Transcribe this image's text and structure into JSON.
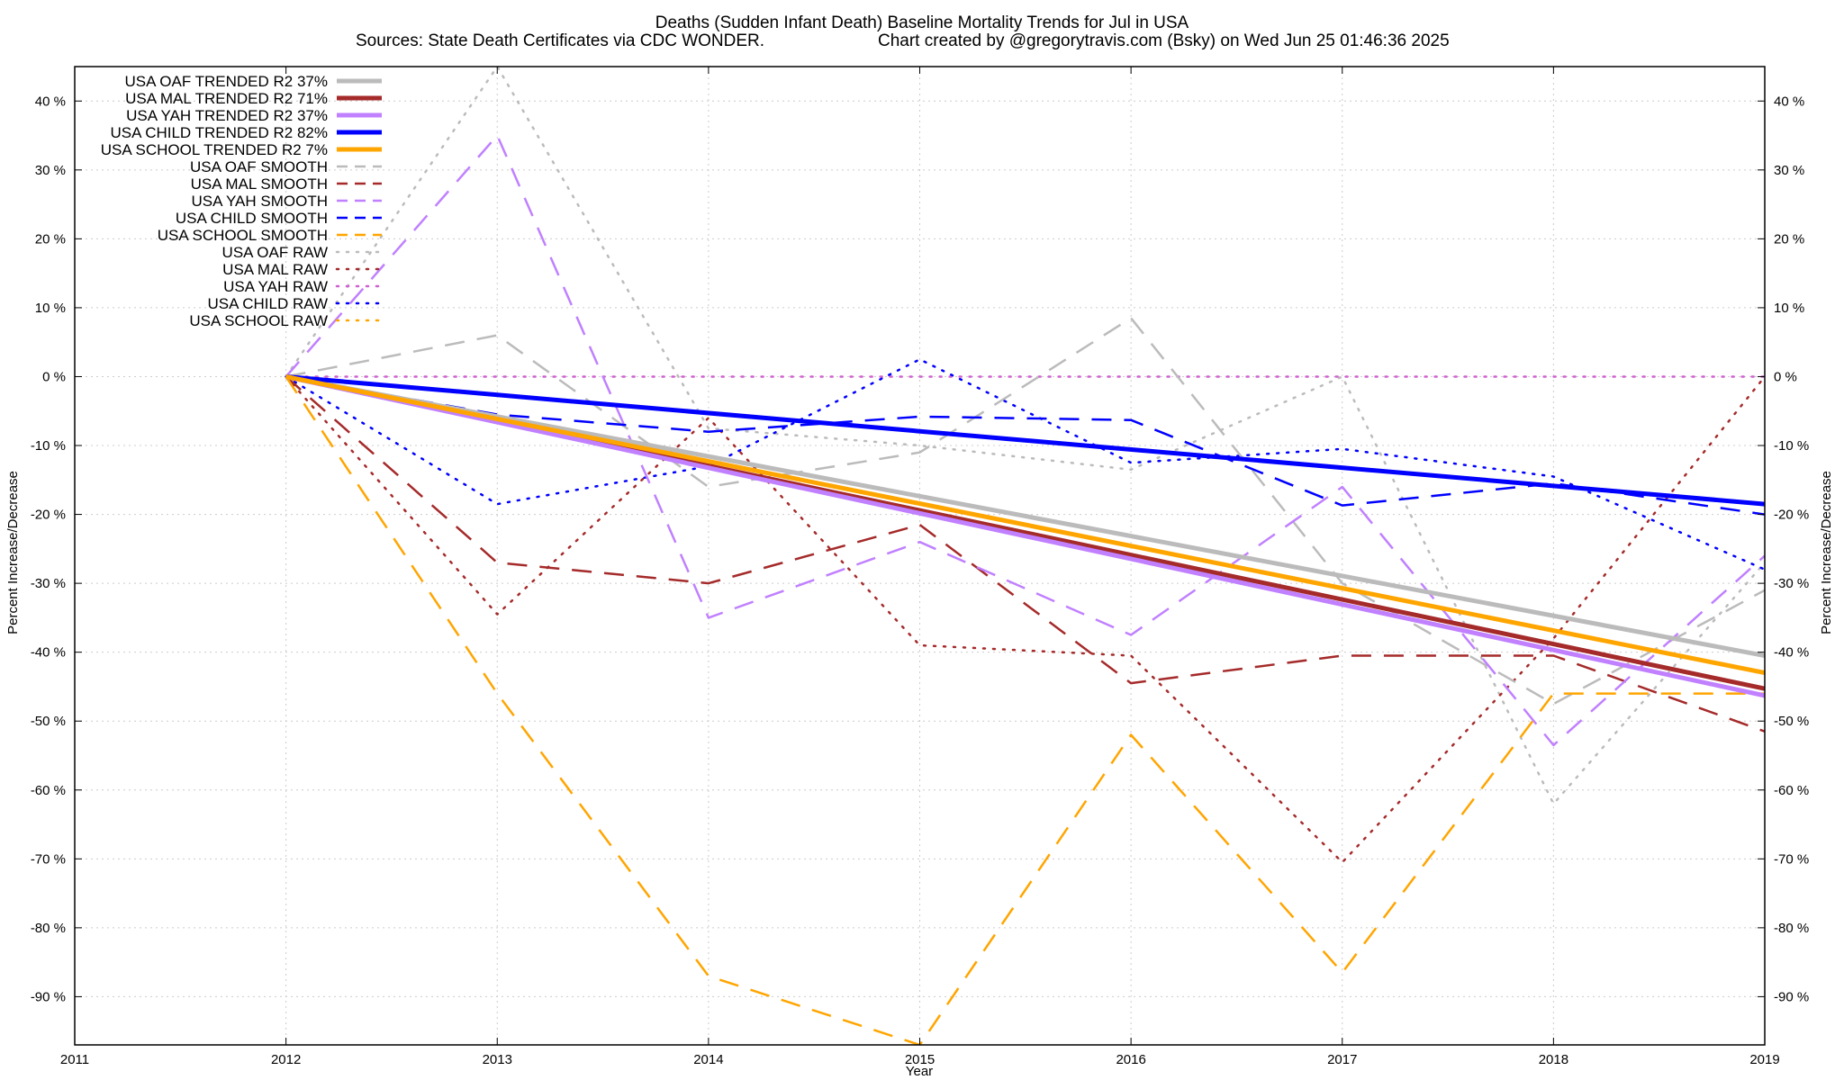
{
  "chart_data": {
    "type": "line",
    "title": "Deaths (Sudden Infant Death)  Baseline Mortality Trends for Jul in USA",
    "subtitle_left": "Sources: State Death Certificates via CDC WONDER.",
    "subtitle_right": "Chart created by @gregorytravis.com (Bsky) on Wed Jun 25 01:46:36 2025",
    "xlabel": "Year",
    "ylabel": "Percent Increase/Decrease",
    "y2label": "Percent Increase/Decrease",
    "xlim": [
      2011,
      2019
    ],
    "ylim": [
      -97,
      45
    ],
    "x_ticks": [
      "2011",
      "2012",
      "2013",
      "2014",
      "2015",
      "2016",
      "2017",
      "2018",
      "2019"
    ],
    "y_ticks": [
      "40 %",
      "30 %",
      "20 %",
      "10 %",
      "0 %",
      "-10 %",
      "-20 %",
      "-30 %",
      "-40 %",
      "-50 %",
      "-60 %",
      "-70 %",
      "-80 %",
      "-90 %"
    ],
    "y_tick_values": [
      40,
      30,
      20,
      10,
      0,
      -10,
      -20,
      -30,
      -40,
      -50,
      -60,
      -70,
      -80,
      -90
    ],
    "grid": true,
    "legend_position": "top-left",
    "series": [
      {
        "name": "USA OAF TRENDED R2  37%",
        "color": "#bbbbbb",
        "style": "solid",
        "width": 5,
        "x": [
          2012,
          2019
        ],
        "y": [
          0,
          -40.5
        ]
      },
      {
        "name": "USA MAL TRENDED R2  71%",
        "color": "#a52a2a",
        "style": "solid",
        "width": 5,
        "x": [
          2012,
          2019
        ],
        "y": [
          0,
          -45.3
        ]
      },
      {
        "name": "USA YAH TRENDED R2  37%",
        "color": "#c080ff",
        "style": "solid",
        "width": 5,
        "x": [
          2012,
          2019
        ],
        "y": [
          0,
          -46.3
        ]
      },
      {
        "name": "USA CHILD TRENDED R2  82%",
        "color": "#0000ff",
        "style": "solid",
        "width": 5,
        "x": [
          2012,
          2019
        ],
        "y": [
          0,
          -18.5
        ]
      },
      {
        "name": "USA SCHOOL TRENDED R2   7%",
        "color": "#ffa500",
        "style": "solid",
        "width": 5,
        "x": [
          2012,
          2019
        ],
        "y": [
          0,
          -43.0
        ]
      },
      {
        "name": "USA OAF SMOOTH",
        "color": "#bbbbbb",
        "style": "dashed",
        "width": 2.5,
        "x": [
          2012,
          2013,
          2014,
          2015,
          2016,
          2017,
          2018,
          2019
        ],
        "y": [
          0,
          6,
          -16,
          -11,
          8.5,
          -30,
          -47.5,
          -31
        ]
      },
      {
        "name": "USA MAL SMOOTH",
        "color": "#a52a2a",
        "style": "dashed",
        "width": 2.5,
        "x": [
          2012,
          2013,
          2014,
          2015,
          2016,
          2017,
          2018,
          2019
        ],
        "y": [
          0,
          -27,
          -30,
          -21.5,
          -44.5,
          -40.5,
          -40.5,
          -51.5
        ]
      },
      {
        "name": "USA YAH SMOOTH",
        "color": "#c080ff",
        "style": "dashed",
        "width": 2.5,
        "x": [
          2012,
          2013,
          2014,
          2015,
          2016,
          2017,
          2018,
          2019
        ],
        "y": [
          0,
          35,
          -35,
          -24,
          -37.5,
          -16,
          -53.5,
          -26
        ]
      },
      {
        "name": "USA CHILD SMOOTH",
        "color": "#0000ff",
        "style": "dashed",
        "width": 2.5,
        "x": [
          2012,
          2013,
          2014,
          2015,
          2016,
          2017,
          2018,
          2019
        ],
        "y": [
          0,
          -5.5,
          -8,
          -5.8,
          -6.3,
          -18.7,
          -15.5,
          -20
        ]
      },
      {
        "name": "USA SCHOOL SMOOTH",
        "color": "#ffa500",
        "style": "dashed",
        "width": 2.5,
        "x": [
          2012,
          2013,
          2014,
          2015,
          2016,
          2017,
          2018,
          2018.5,
          2019
        ],
        "y": [
          0,
          -46,
          -87,
          -97,
          -52,
          -86.5,
          -46,
          -46,
          -46
        ]
      },
      {
        "name": "USA OAF RAW",
        "color": "#bbbbbb",
        "style": "dotted",
        "width": 2.5,
        "x": [
          2012,
          2013,
          2014,
          2015,
          2016,
          2017,
          2018,
          2019
        ],
        "y": [
          0,
          45,
          -7.5,
          -10,
          -13.5,
          0,
          -62,
          -27
        ]
      },
      {
        "name": "USA MAL RAW",
        "color": "#a52a2a",
        "style": "dotted",
        "width": 2.5,
        "x": [
          2012,
          2013,
          2014,
          2015,
          2016,
          2017,
          2018,
          2019
        ],
        "y": [
          0,
          -34.5,
          -6,
          -39,
          -40.5,
          -70.5,
          -38,
          0
        ]
      },
      {
        "name": "USA YAH RAW",
        "color": "#d060d0",
        "style": "dotted",
        "width": 2.5,
        "x": [
          2012,
          2013,
          2014,
          2015,
          2016,
          2017,
          2018,
          2019
        ],
        "y": [
          0,
          0,
          0,
          0,
          0,
          0,
          0,
          0
        ]
      },
      {
        "name": "USA CHILD RAW",
        "color": "#0000ff",
        "style": "dotted",
        "width": 2.5,
        "x": [
          2012,
          2013,
          2014,
          2015,
          2016,
          2017,
          2018,
          2019
        ],
        "y": [
          0,
          -18.5,
          -13,
          2.5,
          -12.5,
          -10.5,
          -14.5,
          -28
        ]
      },
      {
        "name": "USA SCHOOL RAW",
        "color": "#ffa500",
        "style": "dotted",
        "width": 2.5,
        "x": [],
        "y": []
      }
    ]
  }
}
